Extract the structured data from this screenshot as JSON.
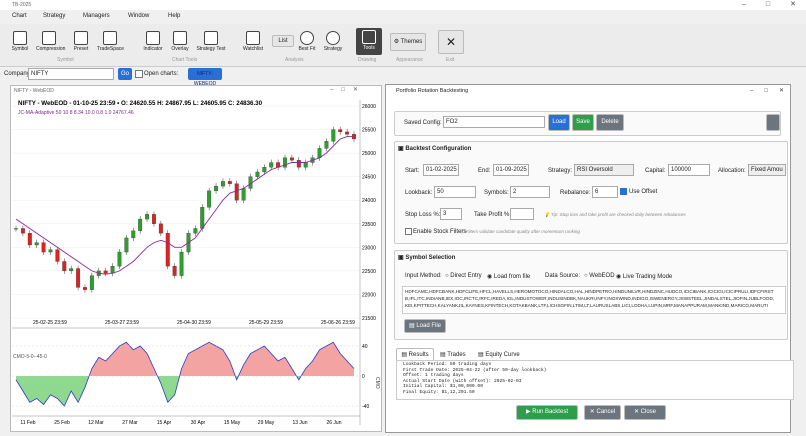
{
  "app": {
    "title": "TB-2025",
    "menu": [
      "Chart",
      "Strategy",
      "Managers",
      "Window",
      "Help"
    ]
  },
  "toolbar": {
    "buttons": [
      "Symbol",
      "Compression",
      "Preset",
      "TradeSpace",
      "Indicator",
      "Overlay",
      "Strategy Test",
      "Watchlist",
      "List",
      "Best Fit",
      "Strategy",
      "Tools",
      "Themes"
    ],
    "groups": [
      "Symbol",
      "Chart Tools",
      "Analysis",
      "Drawing",
      "Appearance",
      "Exit"
    ]
  },
  "company_bar": {
    "label": "Company:",
    "company": "NIFTY",
    "go": "Go",
    "open_charts": "Open charts:",
    "chart_button": "NIFTY-WEBEOD"
  },
  "chart_window": {
    "title": "NIFTY - WebEOD",
    "header": "NIFTY - WebEOD - 01-10-25 23:59 • O: 24620.55  H: 24867.95  L: 24605.95  C: 24836.30",
    "indicator_label": "JC-MA-Adaptive 50 10 8 8.34 10.0 0.8 1.0 24767.46",
    "price_yticks": [
      26000,
      25500,
      25000,
      24500,
      24000,
      23500,
      23000,
      22500,
      22000,
      21500
    ],
    "close": [
      23400,
      23300,
      23050,
      23100,
      22900,
      22950,
      22700,
      22500,
      22550,
      22150,
      22100,
      22400,
      22500,
      22450,
      22600,
      22900,
      23200,
      23350,
      23600,
      23700,
      23500,
      23300,
      22600,
      22400,
      22900,
      23300,
      23400,
      23850,
      24200,
      24300,
      24400,
      24350,
      24000,
      24250,
      24500,
      24600,
      24700,
      24800,
      24700,
      24900,
      24850,
      24700,
      24800,
      24900,
      25100,
      25250,
      25500,
      25450,
      25400,
      25300
    ],
    "ma": [
      23600,
      23500,
      23400,
      23300,
      23200,
      23100,
      23000,
      22900,
      22800,
      22700,
      22600,
      22500,
      22450,
      22430,
      22450,
      22500,
      22600,
      22700,
      22850,
      23000,
      23100,
      23150,
      23100,
      23000,
      23000,
      23100,
      23200,
      23400,
      23600,
      23800,
      24000,
      24150,
      24200,
      24250,
      24350,
      24450,
      24550,
      24650,
      24700,
      24750,
      24800,
      24800,
      24800,
      24850,
      24900,
      25000,
      25150,
      25300,
      25350,
      25350
    ],
    "price_xlabels": [
      "25-02-25 23:59",
      "25-03-27 23:59",
      "25-04-30 23:59",
      "25-05-29 23:59",
      "25-06-26 23:59"
    ],
    "osc_label": "CMO-5-0--45-0",
    "osc_axis_label": "CMO",
    "osc_yticks": [
      40,
      0,
      -40
    ],
    "osc": [
      -5,
      -20,
      -35,
      -30,
      -38,
      -25,
      -30,
      -40,
      -20,
      -35,
      -15,
      10,
      25,
      20,
      30,
      40,
      45,
      35,
      40,
      30,
      10,
      -10,
      -35,
      -25,
      10,
      30,
      35,
      40,
      45,
      40,
      35,
      20,
      -5,
      15,
      30,
      35,
      40,
      30,
      20,
      25,
      10,
      -5,
      10,
      20,
      35,
      40,
      45,
      30,
      20,
      10
    ],
    "date_labels": [
      "11 Feb",
      "25 Feb",
      "12 Mar",
      "27 Mar",
      "15 Apr",
      "30 Apr",
      "15 May",
      "29 May",
      "13 Jun",
      "26 Jun"
    ]
  },
  "backtest": {
    "title": "Portfolio Rotation Backtesting",
    "saved_config": {
      "label": "Saved Config:",
      "value": "FO2",
      "load": "Load",
      "save": "Save",
      "delete": "Delete"
    },
    "config": {
      "title": "Backtest Configuration",
      "start_label": "Start:",
      "start": "01-02-2025",
      "end_label": "End:",
      "end": "01-09-2025",
      "strategy_label": "Strategy:",
      "strategy": "RSI Oversold",
      "capital_label": "Capital:",
      "capital": "100000",
      "allocation_label": "Allocation:",
      "allocation": "Fixed Amou",
      "lookback_label": "Lookback:",
      "lookback": "50",
      "symbols_label": "Symbols:",
      "symbols": "2",
      "rebalance_label": "Rebalance:",
      "rebalance": "6",
      "use_offset": "Use Offset",
      "stop_loss_label": "Stop Loss %:",
      "stop_loss": "3",
      "take_profit_label": "Take Profit %:",
      "tip": "Tip: Stop loss and take profit are checked daily between rebalances",
      "enable_filters": "Enable Stock Filters",
      "filters_note": "Filters validate candidate quality after momentum ranking"
    },
    "symbol_selection": {
      "title": "Symbol Selection",
      "input_method_label": "Input Method:",
      "direct_entry": "Direct Entry",
      "load_from_file": "Load from file",
      "data_source_label": "Data Source:",
      "webeod": "WebEOD",
      "live": "Live Trading Mode",
      "symbols_text": [
        "HDFCAMC,HDFCBANK,HDFCLIFE,HFCL,HAVELLS,HEROMOTOCO,HINDALCO,HAL,HINDPETRO,HINDUNILVR,HINDZINC,HUDCO,ICICIBANK,ICICIGI,ICICIPRULI,IDFCFIRST",
        "B,IFL,ITC,INDIANB,IEX,IOC,IRCTC,IRFC,IREDA,IGL,INDUSTOWER,INDUSINDBK,NAUKRI,INFY,INOXWIND,INDIGO,ISWENERGY,JSWSTEEL,JINDALSTEL,JIOFIN,JUBLFOOD,",
        "KEI,KPITTECH,KALYANKJIL,KAYNES,KFINTECH,KOTAKBANK,LTF,LICHSGFIN,LTIM,LT,LAURUSLABS,LICI,LODHA,LUPIN,MRF,MANAPPURAM,MANKIND,MARICO,MARUTI"
      ],
      "load_file": "Load File"
    },
    "tabs": [
      "Results",
      "Trades",
      "Equity Curve"
    ],
    "log": [
      "Lookback Period: 50 trading days",
      "First Trade Date: 2025-04-22 (after 50-day lookback)",
      "Offset: 1 trading days",
      "Actual Start Date (with offset): 2025-02-03",
      "Initial Capital: $1,00,000.00",
      "Final Equity: $1,12,201.50"
    ],
    "buttons": {
      "run": "Run Backtest",
      "cancel": "Cancel",
      "close": "Close"
    }
  }
}
